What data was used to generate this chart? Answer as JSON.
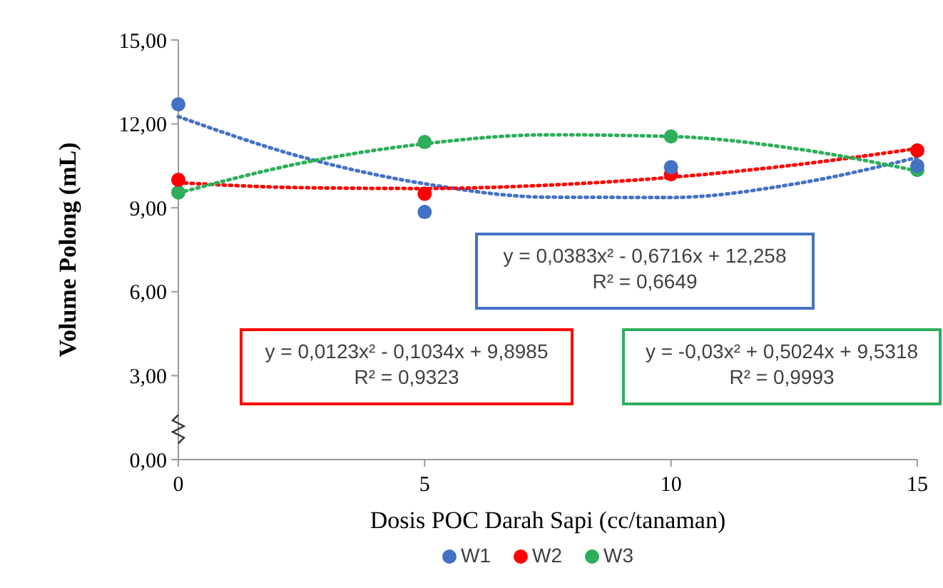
{
  "chart_data": {
    "type": "scatter",
    "xlabel": "Dosis POC Darah Sapi (cc/tanaman)",
    "ylabel": "Volume Polong (mL)",
    "x": [
      0,
      5,
      10,
      15
    ],
    "series": [
      {
        "name": "W1",
        "color": "#4472c4",
        "values": [
          12.7,
          8.85,
          10.45,
          10.5
        ]
      },
      {
        "name": "W2",
        "color": "#ff0000",
        "values": [
          10.0,
          9.5,
          10.2,
          11.05
        ]
      },
      {
        "name": "W3",
        "color": "#2eae5a",
        "values": [
          9.55,
          11.35,
          11.55,
          10.35
        ]
      },
      {
        "type": "line",
        "marker": "none",
        "color": "#4472c4",
        "line_style": "dotted",
        "x": [
          0,
          2.5,
          5,
          7.5,
          10,
          12.5,
          15
        ],
        "values": [
          12.26,
          10.82,
          9.86,
          9.38,
          9.37,
          9.85,
          10.8
        ]
      },
      {
        "type": "line",
        "marker": "none",
        "color": "#ff0000",
        "line_style": "dotted",
        "x": [
          0,
          2.5,
          5,
          7.5,
          10,
          12.5,
          15
        ],
        "values": [
          9.9,
          9.72,
          9.69,
          9.81,
          10.09,
          10.53,
          11.12
        ]
      },
      {
        "type": "line",
        "marker": "none",
        "color": "#2eae5a",
        "line_style": "dotted",
        "x": [
          0,
          2.5,
          5,
          7.5,
          10,
          12.5,
          15
        ],
        "values": [
          9.53,
          10.6,
          11.29,
          11.61,
          11.55,
          11.12,
          10.32
        ]
      }
    ],
    "xlim": [
      0,
      15
    ],
    "xticks": [
      0,
      5,
      10,
      15
    ],
    "ylim": [
      0,
      15
    ],
    "yticks": [
      {
        "value": 0,
        "label": "0,00"
      },
      {
        "value": 3,
        "label": "3,00"
      },
      {
        "value": 6,
        "label": "6,00"
      },
      {
        "value": 9,
        "label": "9,00"
      },
      {
        "value": 12,
        "label": "12,00"
      },
      {
        "value": 15,
        "label": "15,00"
      }
    ],
    "marker": "circle",
    "grid": false,
    "legend": "bottom",
    "annotations": [
      "y = 0,0383x² - 0,6716x + 12,258\nR² = 0,6649",
      "y = 0,0123x² - 0,1034x + 9,8985\nR² = 0,9323",
      "y = -0,03x² + 0,5024x + 9,5318\nR² = 0,9993"
    ]
  }
}
